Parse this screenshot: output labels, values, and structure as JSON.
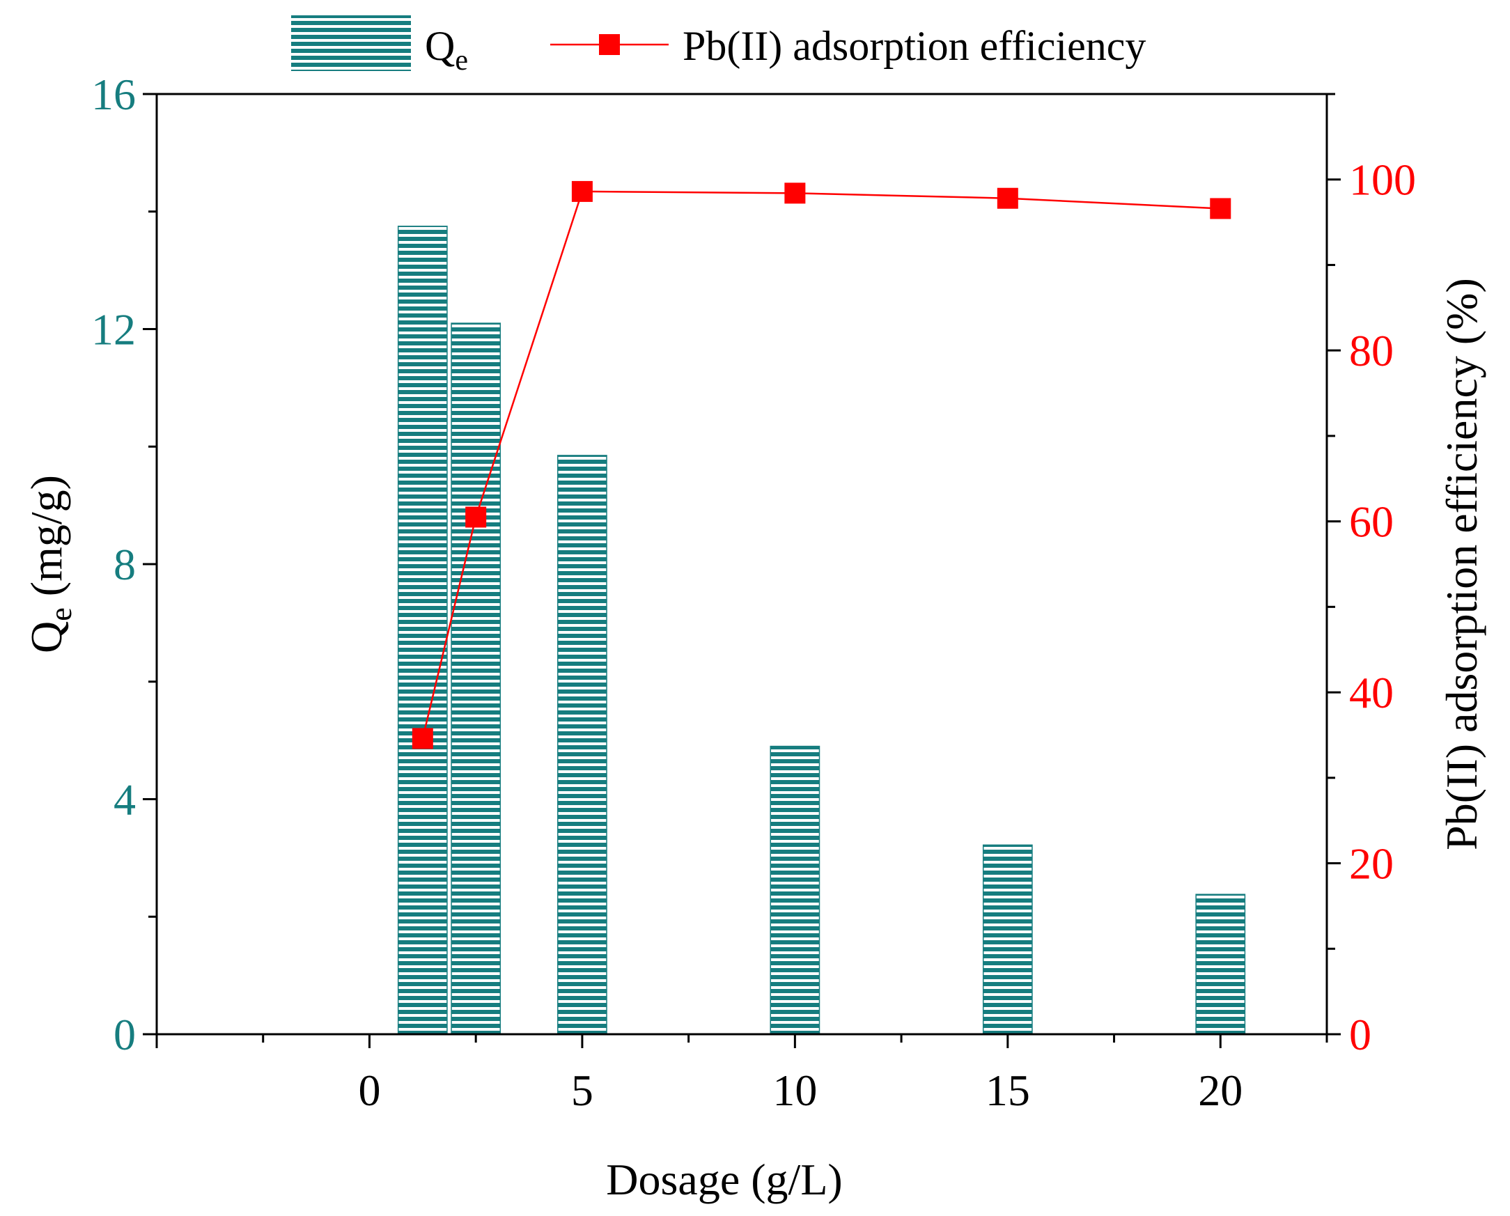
{
  "chart_data": {
    "type": "bar+line",
    "xlabel": "Dosage (g/L)",
    "xlim": [
      -5,
      22.5
    ],
    "x_ticks": [
      0,
      5,
      10,
      15,
      20
    ],
    "x_tick_labels": [
      "0",
      "5",
      "10",
      "15",
      "20"
    ],
    "ylabel_left": {
      "main": "Q",
      "sub": "e",
      "rest": " (mg/g)"
    },
    "ylim_left": [
      0,
      16
    ],
    "y_ticks_left": [
      0,
      4,
      8,
      12,
      16
    ],
    "y_tick_labels_left": [
      "0",
      "4",
      "8",
      "12",
      "16"
    ],
    "ylabel_right": "Pb(II) adsorption efficiency (%)",
    "ylim_right": [
      0,
      110
    ],
    "y_ticks_right": [
      0,
      20,
      40,
      60,
      80,
      100
    ],
    "y_tick_labels_right": [
      "0",
      "20",
      "40",
      "60",
      "80",
      "100"
    ],
    "series": [
      {
        "name": "Qe",
        "legend_main": "Q",
        "legend_sub": "e",
        "kind": "bar",
        "axis": "left",
        "color": "#167d7f",
        "bar_width": 1.15,
        "x": [
          1.25,
          2.5,
          5,
          10,
          15,
          20
        ],
        "values": [
          13.75,
          12.1,
          9.85,
          4.9,
          3.22,
          2.38
        ]
      },
      {
        "name": "Pb(II) adsorption efficiency",
        "kind": "line",
        "axis": "right",
        "color": "#ff0000",
        "x": [
          1.25,
          2.5,
          5,
          10,
          15,
          20
        ],
        "values": [
          34.6,
          60.5,
          98.6,
          98.4,
          97.8,
          96.6
        ]
      }
    ],
    "colors": {
      "left_axis_text": "#167d7f",
      "right_axis_text": "#ff0000",
      "axis": "#000000"
    }
  }
}
